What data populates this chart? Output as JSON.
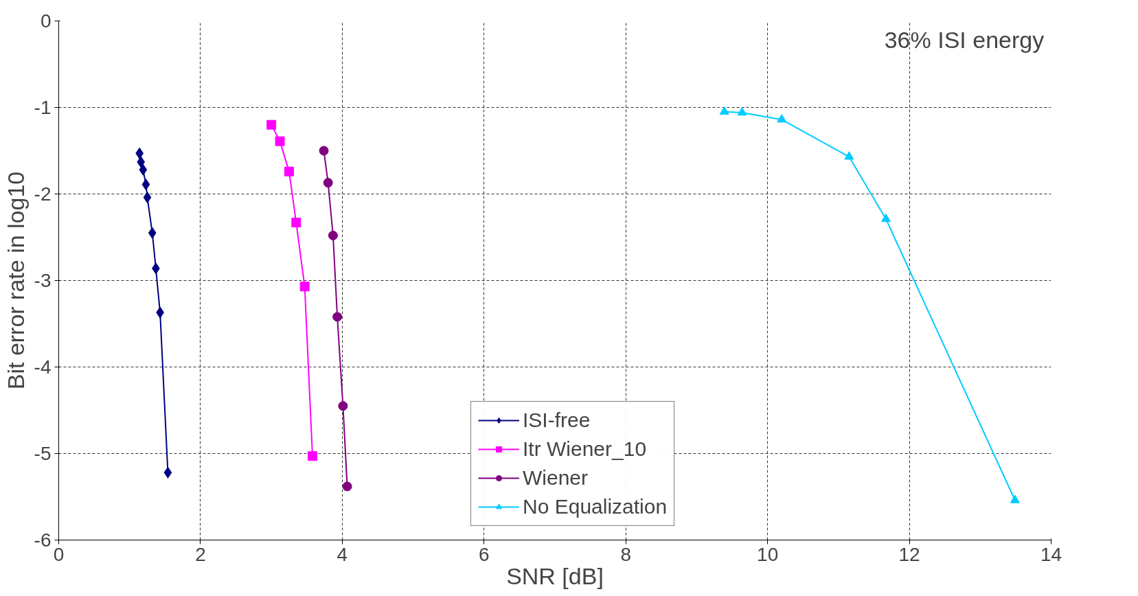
{
  "chart_data": {
    "type": "line",
    "xlabel": "SNR [dB]",
    "ylabel": "Bit error rate in log10",
    "annotations": [
      "36% ISI energy"
    ],
    "xlim": [
      0,
      14
    ],
    "xticks": [
      0,
      2,
      4,
      6,
      8,
      10,
      12,
      14
    ],
    "ylim": [
      -6,
      0
    ],
    "yticks": [
      -6,
      -5,
      -4,
      -3,
      -2,
      -1,
      0
    ],
    "grid": true,
    "legend": "bottom",
    "line_style": "solid",
    "series": [
      {
        "name": "ISI-free",
        "color": "#000080",
        "marker": "diamond",
        "x": [
          1.14,
          1.16,
          1.19,
          1.23,
          1.25,
          1.32,
          1.37,
          1.43,
          1.54
        ],
        "values": [
          -1.53,
          -1.63,
          -1.72,
          -1.89,
          -2.04,
          -2.45,
          -2.86,
          -3.37,
          -5.22
        ]
      },
      {
        "name": "Itr Wiener_10",
        "color": "#ff00ff",
        "marker": "square",
        "x": [
          3.0,
          3.12,
          3.25,
          3.35,
          3.47,
          3.58
        ],
        "values": [
          -1.2,
          -1.39,
          -1.74,
          -2.33,
          -3.07,
          -5.03
        ]
      },
      {
        "name": "Wiener",
        "color": "#800080",
        "marker": "circle",
        "x": [
          3.74,
          3.8,
          3.87,
          3.93,
          4.01,
          4.07
        ],
        "values": [
          -1.5,
          -1.87,
          -2.48,
          -3.42,
          -4.45,
          -5.38
        ]
      },
      {
        "name": "No Equalization",
        "color": "#00ccff",
        "marker": "triangle",
        "x": [
          9.39,
          9.64,
          10.2,
          11.15,
          11.67,
          13.49
        ],
        "values": [
          -1.05,
          -1.06,
          -1.14,
          -1.57,
          -2.29,
          -5.54
        ]
      }
    ]
  }
}
